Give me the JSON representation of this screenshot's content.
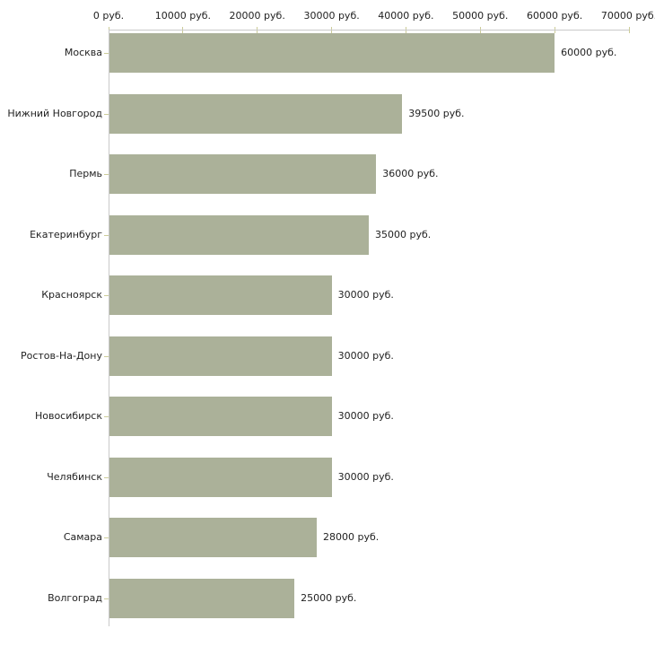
{
  "chart": {
    "background_color": "#ffffff",
    "bar_color": "#abb199",
    "axis_line_color": "#c9c9c9",
    "tick_color": "#cccc99",
    "text_color": "#222222"
  },
  "chart_data": {
    "type": "bar",
    "orientation": "horizontal",
    "title": "",
    "xlabel": "",
    "ylabel": "",
    "unit": "руб.",
    "grid": false,
    "legend": false,
    "xlim": [
      0,
      70000
    ],
    "x_ticks": [
      0,
      10000,
      20000,
      30000,
      40000,
      50000,
      60000,
      70000
    ],
    "x_tick_labels": [
      "0 руб.",
      "10000 руб.",
      "20000 руб.",
      "30000 руб.",
      "40000 руб.",
      "50000 руб.",
      "60000 руб.",
      "70000 руб."
    ],
    "categories": [
      "Москва",
      "Нижний Новгород",
      "Пермь",
      "Екатеринбург",
      "Красноярск",
      "Ростов-На-Дону",
      "Новосибирск",
      "Челябинск",
      "Самара",
      "Волгоград"
    ],
    "values": [
      60000,
      39500,
      36000,
      35000,
      30000,
      30000,
      30000,
      30000,
      28000,
      25000
    ],
    "value_labels": [
      "60000 руб.",
      "39500 руб.",
      "36000 руб.",
      "35000 руб.",
      "30000 руб.",
      "30000 руб.",
      "30000 руб.",
      "30000 руб.",
      "28000 руб.",
      "25000 руб."
    ]
  }
}
